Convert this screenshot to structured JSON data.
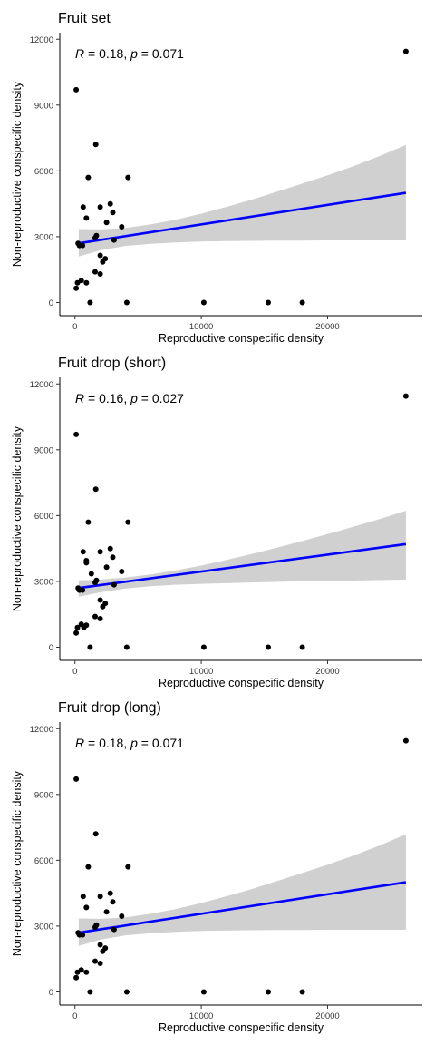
{
  "colors": {
    "background": "#ffffff",
    "point": "#000000",
    "fit_line": "#0000ff",
    "confidence_band": "#d0d0d0",
    "axis": "#000000"
  },
  "chart_data": [
    {
      "type": "scatter",
      "title": "Fruit set",
      "xlabel": "Reproductive conspecific density",
      "ylabel": "Non-reproductive conspecific density",
      "xlim": [
        -1200,
        27500
      ],
      "ylim": [
        -600,
        12300
      ],
      "x_ticks": [
        "0",
        "10000",
        "20000"
      ],
      "y_ticks": [
        "0",
        "3000",
        "6000",
        "9000",
        "12000"
      ],
      "stat": {
        "R": "0.18",
        "p": "0.071"
      },
      "grid": false,
      "points": [
        {
          "x": 100,
          "y": 9700
        },
        {
          "x": 26200,
          "y": 11450
        },
        {
          "x": 1650,
          "y": 7200
        },
        {
          "x": 1050,
          "y": 5700
        },
        {
          "x": 4200,
          "y": 5700
        },
        {
          "x": 2800,
          "y": 4500
        },
        {
          "x": 650,
          "y": 4350
        },
        {
          "x": 2000,
          "y": 4350
        },
        {
          "x": 3000,
          "y": 4100
        },
        {
          "x": 900,
          "y": 3850
        },
        {
          "x": 2500,
          "y": 3650
        },
        {
          "x": 3700,
          "y": 3450
        },
        {
          "x": 1700,
          "y": 3050
        },
        {
          "x": 1600,
          "y": 2950
        },
        {
          "x": 3100,
          "y": 2850
        },
        {
          "x": 250,
          "y": 2700
        },
        {
          "x": 350,
          "y": 2600
        },
        {
          "x": 600,
          "y": 2600
        },
        {
          "x": 2000,
          "y": 2150
        },
        {
          "x": 2400,
          "y": 2000
        },
        {
          "x": 2200,
          "y": 1850
        },
        {
          "x": 1600,
          "y": 1400
        },
        {
          "x": 2000,
          "y": 1300
        },
        {
          "x": 500,
          "y": 1000
        },
        {
          "x": 900,
          "y": 900
        },
        {
          "x": 200,
          "y": 900
        },
        {
          "x": 100,
          "y": 650
        },
        {
          "x": 1200,
          "y": 0
        },
        {
          "x": 4100,
          "y": 0
        },
        {
          "x": 10200,
          "y": 0
        },
        {
          "x": 15300,
          "y": 0
        },
        {
          "x": 18000,
          "y": 0
        }
      ],
      "fit": {
        "x": [
          300,
          26200
        ],
        "y": [
          2700,
          5000
        ]
      },
      "band": {
        "x": [
          300,
          2000,
          4000,
          6000,
          8000,
          10000,
          12000,
          14000,
          16000,
          18000,
          20000,
          22000,
          24000,
          26200
        ],
        "lower": [
          2100,
          2380,
          2580,
          2680,
          2740,
          2780,
          2800,
          2810,
          2820,
          2820,
          2830,
          2830,
          2830,
          2830
        ],
        "upper": [
          3350,
          3330,
          3400,
          3560,
          3780,
          4050,
          4360,
          4690,
          5050,
          5420,
          5800,
          6200,
          6650,
          7180
        ]
      }
    },
    {
      "type": "scatter",
      "title": "Fruit drop (short)",
      "xlabel": "Reproductive conspecific density",
      "ylabel": "Non-reproductive conspecific density",
      "xlim": [
        -1200,
        27500
      ],
      "ylim": [
        -600,
        12300
      ],
      "x_ticks": [
        "0",
        "10000",
        "20000"
      ],
      "y_ticks": [
        "0",
        "3000",
        "6000",
        "9000",
        "12000"
      ],
      "stat": {
        "R": "0.16",
        "p": "0.027"
      },
      "grid": false,
      "points": [
        {
          "x": 100,
          "y": 9700
        },
        {
          "x": 26200,
          "y": 11450
        },
        {
          "x": 1650,
          "y": 7200
        },
        {
          "x": 1050,
          "y": 5700
        },
        {
          "x": 4200,
          "y": 5700
        },
        {
          "x": 2800,
          "y": 4500
        },
        {
          "x": 650,
          "y": 4350
        },
        {
          "x": 2000,
          "y": 4350
        },
        {
          "x": 3000,
          "y": 4100
        },
        {
          "x": 900,
          "y": 3950
        },
        {
          "x": 900,
          "y": 3850
        },
        {
          "x": 2500,
          "y": 3650
        },
        {
          "x": 3700,
          "y": 3450
        },
        {
          "x": 1300,
          "y": 3350
        },
        {
          "x": 1700,
          "y": 3050
        },
        {
          "x": 1600,
          "y": 2950
        },
        {
          "x": 3100,
          "y": 2850
        },
        {
          "x": 250,
          "y": 2700
        },
        {
          "x": 350,
          "y": 2600
        },
        {
          "x": 600,
          "y": 2600
        },
        {
          "x": 2000,
          "y": 2150
        },
        {
          "x": 2400,
          "y": 2000
        },
        {
          "x": 2200,
          "y": 1850
        },
        {
          "x": 1600,
          "y": 1400
        },
        {
          "x": 2000,
          "y": 1300
        },
        {
          "x": 500,
          "y": 1050
        },
        {
          "x": 900,
          "y": 1000
        },
        {
          "x": 700,
          "y": 900
        },
        {
          "x": 200,
          "y": 900
        },
        {
          "x": 100,
          "y": 650
        },
        {
          "x": 1200,
          "y": 0
        },
        {
          "x": 4100,
          "y": 0
        },
        {
          "x": 10200,
          "y": 0
        },
        {
          "x": 15300,
          "y": 0
        },
        {
          "x": 18000,
          "y": 0
        }
      ],
      "fit": {
        "x": [
          300,
          26200
        ],
        "y": [
          2700,
          4700
        ]
      },
      "band": {
        "x": [
          300,
          2000,
          4000,
          6000,
          8000,
          10000,
          12000,
          14000,
          16000,
          18000,
          20000,
          22000,
          24000,
          26200
        ],
        "lower": [
          2300,
          2500,
          2680,
          2780,
          2850,
          2890,
          2920,
          2950,
          2980,
          3000,
          3020,
          3040,
          3060,
          3080
        ],
        "upper": [
          3050,
          3080,
          3180,
          3320,
          3500,
          3720,
          3980,
          4250,
          4540,
          4840,
          5160,
          5480,
          5820,
          6220
        ]
      }
    },
    {
      "type": "scatter",
      "title": "Fruit drop (long)",
      "xlabel": "Reproductive conspecific density",
      "ylabel": "Non-reproductive conspecific density",
      "xlim": [
        -1200,
        27500
      ],
      "ylim": [
        -600,
        12300
      ],
      "x_ticks": [
        "0",
        "10000",
        "20000"
      ],
      "y_ticks": [
        "0",
        "3000",
        "6000",
        "9000",
        "12000"
      ],
      "stat": {
        "R": "0.18",
        "p": "0.071"
      },
      "grid": false,
      "points": [
        {
          "x": 100,
          "y": 9700
        },
        {
          "x": 26200,
          "y": 11450
        },
        {
          "x": 1650,
          "y": 7200
        },
        {
          "x": 1050,
          "y": 5700
        },
        {
          "x": 4200,
          "y": 5700
        },
        {
          "x": 2800,
          "y": 4500
        },
        {
          "x": 650,
          "y": 4350
        },
        {
          "x": 2000,
          "y": 4350
        },
        {
          "x": 3000,
          "y": 4100
        },
        {
          "x": 900,
          "y": 3850
        },
        {
          "x": 2500,
          "y": 3650
        },
        {
          "x": 3700,
          "y": 3450
        },
        {
          "x": 1700,
          "y": 3050
        },
        {
          "x": 1600,
          "y": 2950
        },
        {
          "x": 3100,
          "y": 2850
        },
        {
          "x": 250,
          "y": 2700
        },
        {
          "x": 350,
          "y": 2600
        },
        {
          "x": 600,
          "y": 2600
        },
        {
          "x": 2000,
          "y": 2150
        },
        {
          "x": 2400,
          "y": 2000
        },
        {
          "x": 2200,
          "y": 1850
        },
        {
          "x": 1600,
          "y": 1400
        },
        {
          "x": 2000,
          "y": 1300
        },
        {
          "x": 500,
          "y": 1000
        },
        {
          "x": 900,
          "y": 900
        },
        {
          "x": 200,
          "y": 900
        },
        {
          "x": 100,
          "y": 650
        },
        {
          "x": 1200,
          "y": 0
        },
        {
          "x": 4100,
          "y": 0
        },
        {
          "x": 10200,
          "y": 0
        },
        {
          "x": 15300,
          "y": 0
        },
        {
          "x": 18000,
          "y": 0
        }
      ],
      "fit": {
        "x": [
          300,
          26200
        ],
        "y": [
          2700,
          5000
        ]
      },
      "band": {
        "x": [
          300,
          2000,
          4000,
          6000,
          8000,
          10000,
          12000,
          14000,
          16000,
          18000,
          20000,
          22000,
          24000,
          26200
        ],
        "lower": [
          2100,
          2380,
          2580,
          2680,
          2740,
          2780,
          2800,
          2810,
          2820,
          2820,
          2830,
          2830,
          2830,
          2830
        ],
        "upper": [
          3350,
          3330,
          3400,
          3560,
          3780,
          4050,
          4360,
          4690,
          5050,
          5420,
          5800,
          6200,
          6650,
          7180
        ]
      }
    }
  ]
}
